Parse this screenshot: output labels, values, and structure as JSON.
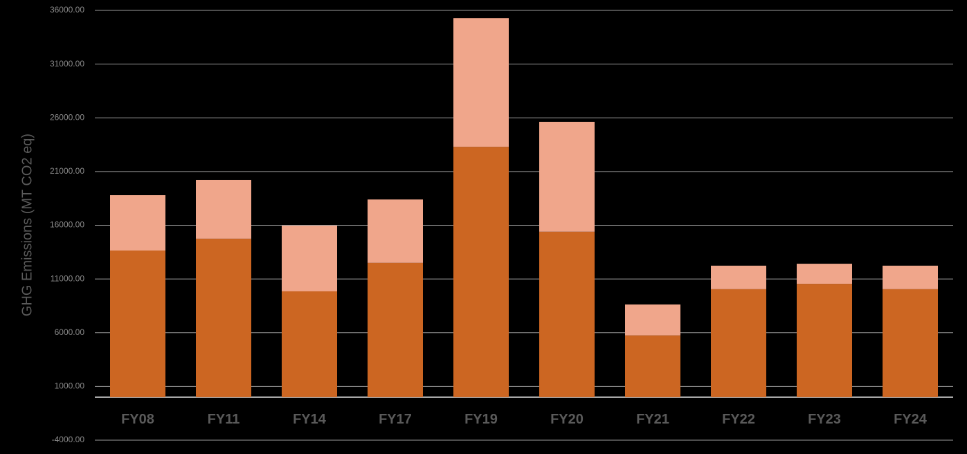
{
  "chart_data": {
    "type": "stacked_bar",
    "y_label": "GHG Emissions (MT CO2 eq)",
    "categories": [
      "FY08",
      "FY11",
      "FY14",
      "FY17",
      "FY19",
      "FY20",
      "FY21",
      "FY22",
      "FY23",
      "FY24"
    ],
    "series": [
      {
        "color": "#cc6622",
        "values": [
          13650,
          14750,
          9850,
          12500,
          23300,
          15400,
          5750,
          10050,
          10550,
          10050
        ]
      },
      {
        "color": "#f0a68b",
        "values": [
          5150,
          5470,
          6120,
          5900,
          11980,
          10230,
          2880,
          2190,
          1870,
          2190
        ]
      }
    ],
    "ylim": [
      -4000,
      36000
    ],
    "yticks": [
      {
        "value": -4000,
        "label": "-4000.00"
      },
      {
        "value": 1000,
        "label": "1000.00"
      },
      {
        "value": 6000,
        "label": "6000.00"
      },
      {
        "value": 11000,
        "label": "11000.00"
      },
      {
        "value": 16000,
        "label": "16000.00"
      },
      {
        "value": 21000,
        "label": "21000.00"
      },
      {
        "value": 26000,
        "label": "26000.00"
      },
      {
        "value": 31000,
        "label": "31000.00"
      },
      {
        "value": 36000,
        "label": "36000.00"
      }
    ],
    "grid": true
  }
}
